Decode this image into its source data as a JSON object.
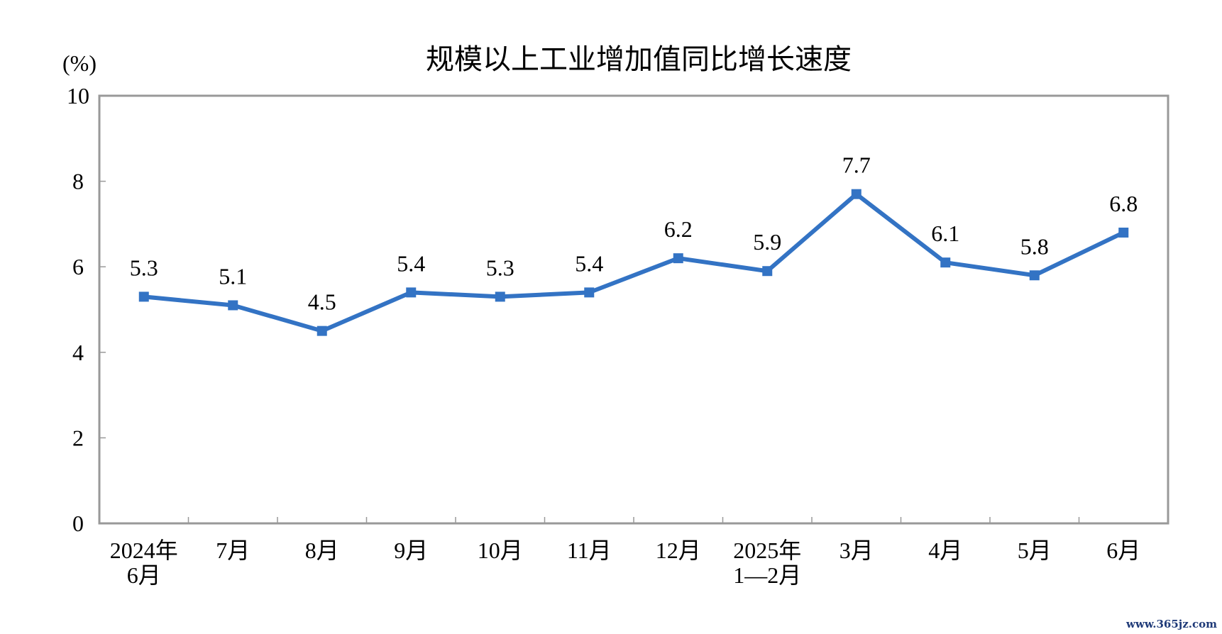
{
  "chart_data": {
    "type": "line",
    "title": "规模以上工业增加值同比增长速度",
    "ylabel": "(%)",
    "xlabel": "",
    "categories": [
      [
        "2024年",
        "6月"
      ],
      [
        "7月"
      ],
      [
        "8月"
      ],
      [
        "9月"
      ],
      [
        "10月"
      ],
      [
        "11月"
      ],
      [
        "12月"
      ],
      [
        "2025年",
        "1—2月"
      ],
      [
        "3月"
      ],
      [
        "4月"
      ],
      [
        "5月"
      ],
      [
        "6月"
      ]
    ],
    "values": [
      5.3,
      5.1,
      4.5,
      5.4,
      5.3,
      5.4,
      6.2,
      5.9,
      7.7,
      6.1,
      5.8,
      6.8
    ],
    "data_labels": [
      "5.3",
      "5.1",
      "4.5",
      "5.4",
      "5.3",
      "5.4",
      "6.2",
      "5.9",
      "7.7",
      "6.1",
      "5.8",
      "6.8"
    ],
    "ylim": [
      0,
      10
    ],
    "yticks": [
      "0",
      "2",
      "4",
      "6",
      "8",
      "10"
    ],
    "grid": false,
    "legend": "none",
    "line_color": "#3373c4",
    "marker": "square"
  },
  "watermark": "www.365jz.com"
}
